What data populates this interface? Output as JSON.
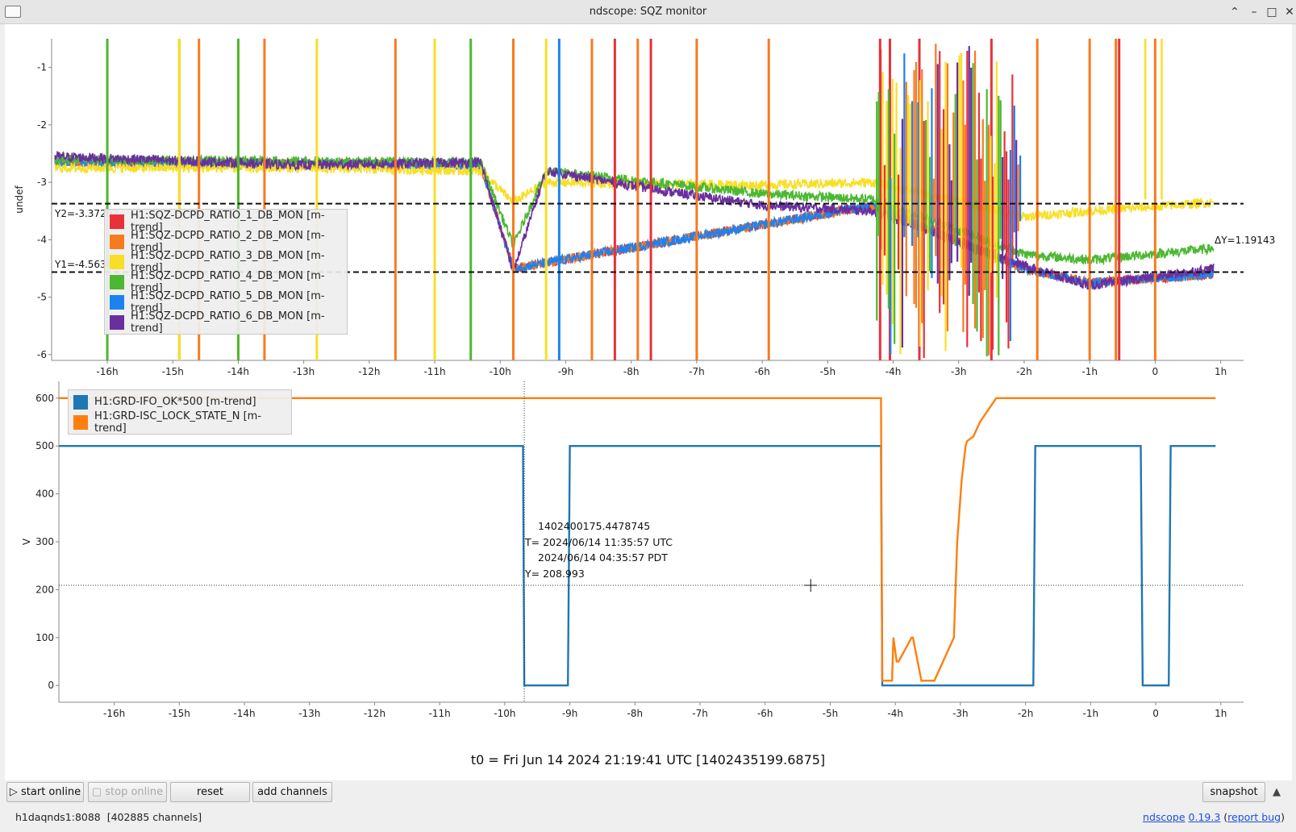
{
  "window": {
    "title": "ndscope: SQZ monitor"
  },
  "top_plot": {
    "ylabel": "undef",
    "yticks": [
      "-1",
      "-2",
      "-3",
      "-4",
      "-5",
      "-6"
    ],
    "xticks": [
      "-16h",
      "-15h",
      "-14h",
      "-13h",
      "-12h",
      "-11h",
      "-10h",
      "-9h",
      "-8h",
      "-7h",
      "-6h",
      "-5h",
      "-4h",
      "-3h",
      "-2h",
      "-1h",
      "0",
      "1h"
    ],
    "y1_label": "Y1=-4.56345",
    "y2_label": "Y2=-3.37202",
    "dy_label": "ΔY=1.19143",
    "legend": [
      {
        "label": "H1:SQZ-DCPD_RATIO_1_DB_MON [m-trend]",
        "color": "#e8313a"
      },
      {
        "label": "H1:SQZ-DCPD_RATIO_2_DB_MON [m-trend]",
        "color": "#f87a1e"
      },
      {
        "label": "H1:SQZ-DCPD_RATIO_3_DB_MON [m-trend]",
        "color": "#f7df27"
      },
      {
        "label": "H1:SQZ-DCPD_RATIO_4_DB_MON [m-trend]",
        "color": "#4cb832"
      },
      {
        "label": "H1:SQZ-DCPD_RATIO_5_DB_MON [m-trend]",
        "color": "#1d82f0"
      },
      {
        "label": "H1:SQZ-DCPD_RATIO_6_DB_MON [m-trend]",
        "color": "#6a2f9e"
      }
    ]
  },
  "bottom_plot": {
    "ylabel": "V",
    "yticks": [
      "600",
      "500",
      "400",
      "300",
      "200",
      "100",
      "0"
    ],
    "xticks": [
      "-16h",
      "-15h",
      "-14h",
      "-13h",
      "-12h",
      "-11h",
      "-10h",
      "-9h",
      "-8h",
      "-7h",
      "-6h",
      "-5h",
      "-4h",
      "-3h",
      "-2h",
      "-1h",
      "0",
      "1h"
    ],
    "legend": [
      {
        "label": "H1:GRD-IFO_OK*500 [m-trend]",
        "color": "#1f77b4"
      },
      {
        "label": "H1:GRD-ISC_LOCK_STATE_N [m-trend]",
        "color": "#ff7f0e"
      }
    ],
    "readout": {
      "gps": "1402400175.4478745",
      "t_utc": "T= 2024/06/14 11:35:57 UTC",
      "t_pdt": "2024/06/14 04:35:57 PDT",
      "y": "Y= 208.993"
    }
  },
  "chart_data": [
    {
      "type": "line",
      "title": "",
      "xlabel": "",
      "ylabel": "undef",
      "xlim": [
        -16.85,
        1.35
      ],
      "ylim": [
        -6.1,
        -0.5
      ],
      "series": [
        {
          "name": "H1:SQZ-DCPD_RATIO_1_DB_MON [m-trend]",
          "x": [
            -16.8,
            -10.3,
            -9.8,
            -4.3,
            -2.0,
            -1.0,
            0.9
          ],
          "y": [
            -2.65,
            -2.7,
            -4.5,
            -3.4,
            -4.5,
            -4.75,
            -4.6
          ]
        },
        {
          "name": "H1:SQZ-DCPD_RATIO_2_DB_MON [m-trend]",
          "x": [
            -16.8,
            -10.3,
            -9.8,
            -4.3,
            -2.0,
            -1.0,
            0.9
          ],
          "y": [
            -2.65,
            -2.7,
            -4.5,
            -3.4,
            -4.5,
            -4.75,
            -4.6
          ]
        },
        {
          "name": "H1:SQZ-DCPD_RATIO_3_DB_MON [m-trend]",
          "x": [
            -16.8,
            -13.0,
            -10.3,
            -9.8,
            -9.3,
            -6.0,
            -4.3,
            -2.0,
            -1.0,
            0.9
          ],
          "y": [
            -2.75,
            -2.75,
            -2.8,
            -3.35,
            -3.0,
            -3.05,
            -3.0,
            -3.6,
            -3.5,
            -3.35
          ]
        },
        {
          "name": "H1:SQZ-DCPD_RATIO_4_DB_MON [m-trend]",
          "x": [
            -16.8,
            -10.3,
            -9.8,
            -9.3,
            -6.0,
            -4.3,
            -2.0,
            -1.0,
            0.9
          ],
          "y": [
            -2.6,
            -2.65,
            -4.1,
            -2.8,
            -3.2,
            -3.3,
            -4.25,
            -4.35,
            -4.15
          ]
        },
        {
          "name": "H1:SQZ-DCPD_RATIO_5_DB_MON [m-trend]",
          "x": [
            -16.8,
            -10.3,
            -9.8,
            -4.3,
            -2.0,
            -1.0,
            0.9
          ],
          "y": [
            -2.65,
            -2.7,
            -4.5,
            -3.4,
            -4.5,
            -4.75,
            -4.6
          ]
        },
        {
          "name": "H1:SQZ-DCPD_RATIO_6_DB_MON [m-trend]",
          "x": [
            -16.8,
            -13.0,
            -10.3,
            -9.8,
            -9.3,
            -7.5,
            -6.0,
            -4.3,
            -2.0,
            -1.0,
            0.9
          ],
          "y": [
            -2.55,
            -2.7,
            -2.65,
            -4.55,
            -2.8,
            -3.15,
            -3.4,
            -3.5,
            -4.45,
            -4.8,
            -4.5
          ]
        }
      ],
      "cursors": {
        "y1": -4.56345,
        "y2": -3.37202
      }
    },
    {
      "type": "line",
      "title": "",
      "xlabel": "",
      "ylabel": "V",
      "xlim": [
        -16.85,
        1.35
      ],
      "ylim": [
        -35,
        635
      ],
      "series": [
        {
          "name": "H1:GRD-IFO_OK*500 [m-trend]",
          "x": [
            -16.85,
            -9.72,
            -9.7,
            -9.03,
            -9.0,
            -4.22,
            -4.2,
            -1.88,
            -1.85,
            -0.23,
            -0.2,
            0.2,
            0.23,
            0.92
          ],
          "y": [
            500,
            500,
            0,
            0,
            500,
            500,
            0,
            0,
            500,
            500,
            0,
            0,
            500,
            500
          ]
        },
        {
          "name": "H1:GRD-ISC_LOCK_STATE_N [m-trend]",
          "x": [
            -16.85,
            -4.22,
            -4.2,
            -4.05,
            -4.03,
            -3.98,
            -3.95,
            -3.75,
            -3.73,
            -3.6,
            -3.58,
            -3.42,
            -3.4,
            -3.1,
            -3.05,
            -2.98,
            -2.92,
            -2.9,
            -2.8,
            -2.7,
            -2.55,
            -2.45,
            -2.4,
            0.92
          ],
          "y": [
            600,
            600,
            10,
            10,
            100,
            50,
            50,
            100,
            100,
            10,
            10,
            10,
            10,
            100,
            300,
            430,
            500,
            510,
            520,
            550,
            580,
            600,
            600,
            600
          ]
        }
      ],
      "cursors": {
        "y": 208.993,
        "x": -9.7
      }
    }
  ],
  "t0_label": "t0 = Fri Jun 14 2024 21:19:41 UTC [1402435199.6875]",
  "buttons": {
    "start_online": "▷ start online",
    "stop_online": "▢ stop online",
    "reset": "reset",
    "add_channels": "add channels",
    "snapshot": "snapshot"
  },
  "status": {
    "server": "h1daqnds1:8088  [402885 channels]",
    "app": "ndscope",
    "version": "0.19.3",
    "report": "report bug"
  }
}
